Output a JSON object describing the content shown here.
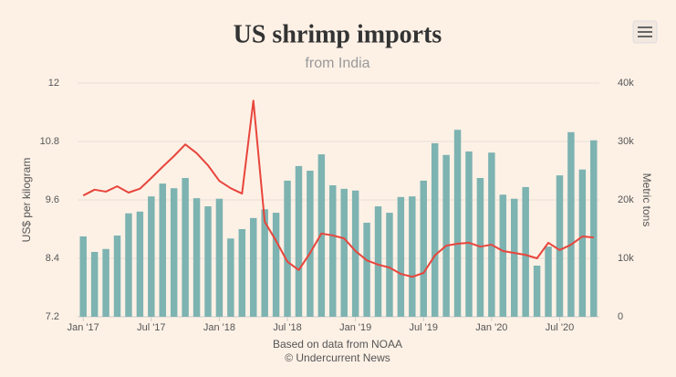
{
  "chart_data": {
    "type": "bar-line",
    "title": "US shrimp imports",
    "subtitle": "from India",
    "y_label": "US$ per kilogram",
    "y2_label": "Metric tons",
    "credits": [
      "Based on data from NOAA",
      "© Undercurrent News"
    ],
    "categories": [
      "Jan '17",
      null,
      null,
      null,
      null,
      null,
      "Jul '17",
      null,
      null,
      null,
      null,
      null,
      "Jan '18",
      null,
      null,
      null,
      null,
      null,
      "Jul '18",
      null,
      null,
      null,
      null,
      null,
      "Jan '19",
      null,
      null,
      null,
      null,
      null,
      "Jul '19",
      null,
      null,
      null,
      null,
      null,
      "Jan '20",
      null,
      null,
      null,
      null,
      null,
      "Jul '20",
      null,
      null,
      null
    ],
    "ylim": [
      7.2,
      12
    ],
    "yticks": [
      7.2,
      8.4,
      9.6,
      10.8,
      12
    ],
    "y2lim": [
      0,
      40000
    ],
    "y2ticks": [
      0,
      {
        "value": 10000,
        "label": "10k"
      },
      {
        "value": 20000,
        "label": "20k"
      },
      {
        "value": 30000,
        "label": "30k"
      },
      {
        "value": 40000,
        "label": "40k"
      }
    ],
    "grid": true,
    "series": [
      {
        "type": "bar",
        "axis": "y2",
        "color": "#7db3b1",
        "values": [
          13750,
          11100,
          11600,
          13900,
          17700,
          18000,
          20600,
          22800,
          22000,
          23750,
          20300,
          18900,
          20200,
          13400,
          15000,
          16900,
          18400,
          17800,
          23300,
          25800,
          25000,
          27800,
          22500,
          21900,
          21600,
          16100,
          18900,
          17800,
          20500,
          20600,
          23300,
          29700,
          27700,
          32000,
          28300,
          23750,
          28100,
          20900,
          20200,
          22200,
          8750,
          12000,
          24200,
          31600,
          25200,
          30200
        ]
      },
      {
        "type": "line",
        "axis": "y",
        "color": "#e8453c",
        "values": [
          9.69,
          9.81,
          9.77,
          9.88,
          9.75,
          9.83,
          10.05,
          10.28,
          10.5,
          10.74,
          10.56,
          10.31,
          9.99,
          9.84,
          9.73,
          11.64,
          9.15,
          8.76,
          8.33,
          8.16,
          8.51,
          8.91,
          8.87,
          8.81,
          8.55,
          8.36,
          8.27,
          8.21,
          8.08,
          8.02,
          8.1,
          8.46,
          8.66,
          8.7,
          8.72,
          8.64,
          8.68,
          8.55,
          8.51,
          8.47,
          8.4,
          8.72,
          8.57,
          8.68,
          8.85,
          8.83
        ]
      }
    ]
  }
}
